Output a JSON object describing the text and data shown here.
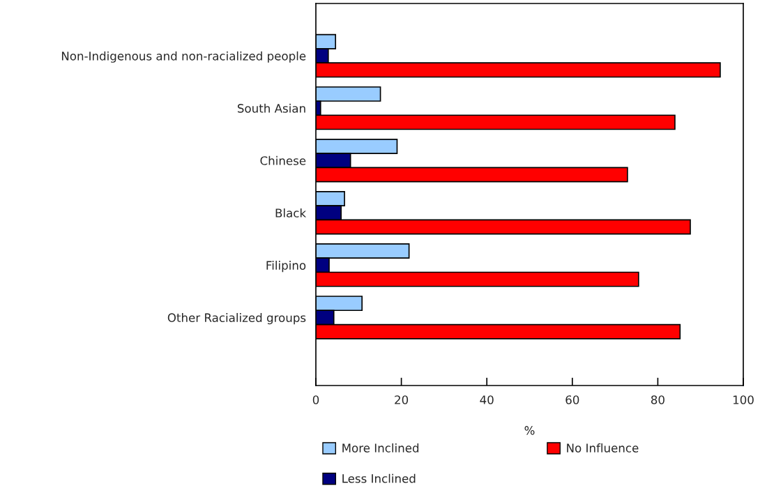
{
  "chart_data": {
    "type": "bar",
    "orientation": "horizontal",
    "xlabel": "%",
    "categories": [
      "Non-Indigenous and non-racialized people",
      "South Asian",
      "Chinese",
      "Black",
      "Filipino",
      "Other Racialized groups"
    ],
    "series": [
      {
        "name": "More Inclined",
        "color": "#99ccff",
        "values": [
          4.6,
          15.1,
          19.0,
          6.7,
          21.8,
          10.8
        ]
      },
      {
        "name": "Less Inclined",
        "color": "#000080",
        "values": [
          2.9,
          1.1,
          8.1,
          5.9,
          3.1,
          4.2
        ]
      },
      {
        "name": "No Influence",
        "color": "#ff0000",
        "values": [
          94.6,
          84.0,
          72.9,
          87.6,
          75.5,
          85.2
        ]
      }
    ],
    "xlim": [
      0,
      100
    ],
    "xticks": [
      0,
      20,
      40,
      60,
      80,
      100
    ],
    "grid": false,
    "legend": "bottom"
  }
}
